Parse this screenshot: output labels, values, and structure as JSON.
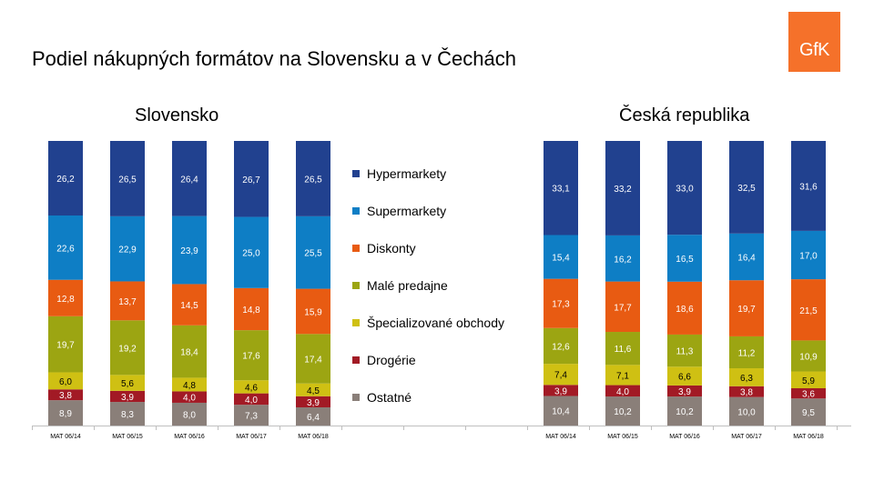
{
  "title": "Podiel nákupných formátov na Slovensku a v Čechách",
  "logo_text": "GfK",
  "colors": {
    "Ostatné": "#8a7f79",
    "Drogérie": "#a21a25",
    "Špecializované obchody": "#cfc013",
    "Malé predajne": "#9ca512",
    "Diskonty": "#e85b12",
    "Supermarkety": "#0e7ec5",
    "Hypermarkety": "#21418f"
  },
  "legend": [
    "Hypermarkety",
    "Supermarkety",
    "Diskonty",
    "Malé predajne",
    "Špecializované obchody",
    "Drogérie",
    "Ostatné"
  ],
  "chart_data": [
    {
      "type": "bar",
      "stacked": true,
      "title": "Slovensko",
      "categories": [
        "MAT 06/14",
        "MAT 06/15",
        "MAT 06/16",
        "MAT 06/17",
        "MAT 06/18"
      ],
      "series": [
        {
          "name": "Ostatné",
          "values": [
            8.9,
            8.3,
            8.0,
            7.3,
            6.4
          ],
          "labels": [
            "8,9",
            "8,3",
            "8,0",
            "7,3",
            "6,4"
          ]
        },
        {
          "name": "Drogérie",
          "values": [
            3.8,
            3.9,
            4.0,
            4.0,
            3.9
          ],
          "labels": [
            "3,8",
            "3,9",
            "4,0",
            "4,0",
            "3,9"
          ]
        },
        {
          "name": "Špecializované obchody",
          "values": [
            6.0,
            5.6,
            4.8,
            4.6,
            4.5
          ],
          "labels": [
            "6,0",
            "5,6",
            "4,8",
            "4,6",
            "4,5"
          ]
        },
        {
          "name": "Malé predajne",
          "values": [
            19.7,
            19.2,
            18.4,
            17.6,
            17.4
          ],
          "labels": [
            "19,7",
            "19,2",
            "18,4",
            "17,6",
            "17,4"
          ]
        },
        {
          "name": "Diskonty",
          "values": [
            12.8,
            13.7,
            14.5,
            14.8,
            15.9
          ],
          "labels": [
            "12,8",
            "13,7",
            "14,5",
            "14,8",
            "15,9"
          ]
        },
        {
          "name": "Supermarkety",
          "values": [
            22.6,
            22.9,
            23.9,
            25.0,
            25.5
          ],
          "labels": [
            "22,6",
            "22,9",
            "23,9",
            "25,0",
            "25,5"
          ]
        },
        {
          "name": "Hypermarkety",
          "values": [
            26.2,
            26.5,
            26.4,
            26.7,
            26.5
          ],
          "labels": [
            "26,2",
            "26,5",
            "26,4",
            "26,7",
            "26,5"
          ]
        }
      ]
    },
    {
      "type": "bar",
      "stacked": true,
      "title": "Česká republika",
      "categories": [
        "MAT 06/14",
        "MAT 06/15",
        "MAT 06/16",
        "MAT 06/17",
        "MAT 06/18"
      ],
      "series": [
        {
          "name": "Ostatné",
          "values": [
            10.4,
            10.2,
            10.2,
            10.0,
            9.5
          ],
          "labels": [
            "10,4",
            "10,2",
            "10,2",
            "10,0",
            "9,5"
          ]
        },
        {
          "name": "Drogérie",
          "values": [
            3.9,
            4.0,
            3.9,
            3.8,
            3.6
          ],
          "labels": [
            "3,9",
            "4,0",
            "3,9",
            "3,8",
            "3,6"
          ]
        },
        {
          "name": "Špecializované obchody",
          "values": [
            7.4,
            7.1,
            6.6,
            6.3,
            5.9
          ],
          "labels": [
            "7,4",
            "7,1",
            "6,6",
            "6,3",
            "5,9"
          ]
        },
        {
          "name": "Malé predajne",
          "values": [
            12.6,
            11.6,
            11.3,
            11.2,
            10.9
          ],
          "labels": [
            "12,6",
            "11,6",
            "11,3",
            "11,2",
            "10,9"
          ]
        },
        {
          "name": "Diskonty",
          "values": [
            17.3,
            17.7,
            18.6,
            19.7,
            21.5
          ],
          "labels": [
            "17,3",
            "17,7",
            "18,6",
            "19,7",
            "21,5"
          ]
        },
        {
          "name": "Supermarkety",
          "values": [
            15.4,
            16.2,
            16.5,
            16.4,
            17.0
          ],
          "labels": [
            "15,4",
            "16,2",
            "16,5",
            "16,4",
            "17,0"
          ]
        },
        {
          "name": "Hypermarkety",
          "values": [
            33.1,
            33.2,
            33.0,
            32.5,
            31.6
          ],
          "labels": [
            "33,1",
            "33,2",
            "33,0",
            "32,5",
            "31,6"
          ]
        }
      ]
    }
  ]
}
